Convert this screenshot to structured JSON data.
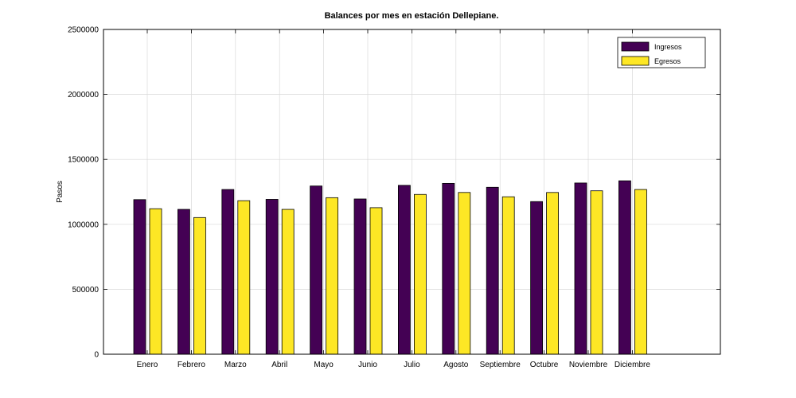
{
  "chart_data": {
    "type": "bar",
    "title": "Balances por mes en estación Dellepiane.",
    "xlabel": "",
    "ylabel": "Pasos",
    "ylim": [
      0,
      2500000
    ],
    "yticks": [
      0,
      500000,
      1000000,
      1500000,
      2000000,
      2500000
    ],
    "ytick_labels": [
      "0",
      "500000",
      "1000000",
      "1500000",
      "2000000",
      "2500000"
    ],
    "grid": true,
    "legend_position": "top-right",
    "categories": [
      "Enero",
      "Febrero",
      "Marzo",
      "Abril",
      "Mayo",
      "Junio",
      "Julio",
      "Agosto",
      "Septiembre",
      "Octubre",
      "Noviembre",
      "Diciembre"
    ],
    "series": [
      {
        "name": "Ingresos",
        "color": "#440154",
        "values": [
          1190000,
          1115000,
          1268000,
          1192000,
          1295000,
          1195000,
          1300000,
          1315000,
          1285000,
          1175000,
          1318000,
          1335000
        ]
      },
      {
        "name": "Egresos",
        "color": "#fde725",
        "values": [
          1120000,
          1052000,
          1182000,
          1115000,
          1205000,
          1128000,
          1230000,
          1245000,
          1212000,
          1245000,
          1258000,
          1268000
        ]
      }
    ]
  }
}
